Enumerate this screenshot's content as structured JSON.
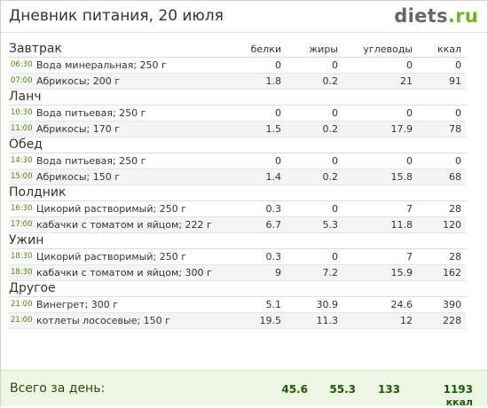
{
  "title": "Дневник питания, 20 июля",
  "logo": {
    "name": "diets",
    "tld": ".ru"
  },
  "columns": [
    "белки",
    "жиры",
    "углеводы",
    "ккал"
  ],
  "meals": [
    {
      "name": "Завтрак",
      "items": [
        {
          "time": "06:30",
          "food": "Вода минеральная; 250 г",
          "protein": "0",
          "fat": "0",
          "carbs": "0",
          "kcal": "0"
        },
        {
          "time": "07:00",
          "food": "Абрикосы; 200 г",
          "protein": "1.8",
          "fat": "0.2",
          "carbs": "21",
          "kcal": "91"
        }
      ]
    },
    {
      "name": "Ланч",
      "items": [
        {
          "time": "10:30",
          "food": "Вода питьевая; 250 г",
          "protein": "0",
          "fat": "0",
          "carbs": "0",
          "kcal": "0"
        },
        {
          "time": "11:00",
          "food": "Абрикосы; 170 г",
          "protein": "1.5",
          "fat": "0.2",
          "carbs": "17.9",
          "kcal": "78"
        }
      ]
    },
    {
      "name": "Обед",
      "items": [
        {
          "time": "14:30",
          "food": "Вода питьевая; 250 г",
          "protein": "0",
          "fat": "0",
          "carbs": "0",
          "kcal": "0"
        },
        {
          "time": "15:00",
          "food": "Абрикосы; 150 г",
          "protein": "1.4",
          "fat": "0.2",
          "carbs": "15.8",
          "kcal": "68"
        }
      ]
    },
    {
      "name": "Полдник",
      "items": [
        {
          "time": "16:30",
          "food": "Цикорий растворимый; 250 г",
          "protein": "0.3",
          "fat": "0",
          "carbs": "7",
          "kcal": "28"
        },
        {
          "time": "17:00",
          "food": "кабачки с томатом и яйцом; 222 г",
          "protein": "6.7",
          "fat": "5.3",
          "carbs": "11.8",
          "kcal": "120"
        }
      ]
    },
    {
      "name": "Ужин",
      "items": [
        {
          "time": "18:30",
          "food": "Цикорий растворимый; 250 г",
          "protein": "0.3",
          "fat": "0",
          "carbs": "7",
          "kcal": "28"
        },
        {
          "time": "18:30",
          "food": "кабачки с томатом и яйцом; 300 г",
          "protein": "9",
          "fat": "7.2",
          "carbs": "15.9",
          "kcal": "162"
        }
      ]
    },
    {
      "name": "Другое",
      "items": [
        {
          "time": "21:00",
          "food": "Винегрет; 300 г",
          "protein": "5.1",
          "fat": "30.9",
          "carbs": "24.6",
          "kcal": "390"
        },
        {
          "time": "21:00",
          "food": "котлеты лососевые; 150 г",
          "protein": "19.5",
          "fat": "11.3",
          "carbs": "12",
          "kcal": "228"
        }
      ]
    }
  ],
  "total": {
    "label": "Всего за день:",
    "protein": "45.6",
    "fat": "55.3",
    "carbs": "133",
    "kcal": "1193",
    "kcal_unit": "ккал"
  },
  "colors": {
    "time": "#4b8a0e",
    "logo_accent": "#76b51b",
    "total_bg": "#eef6e4"
  }
}
